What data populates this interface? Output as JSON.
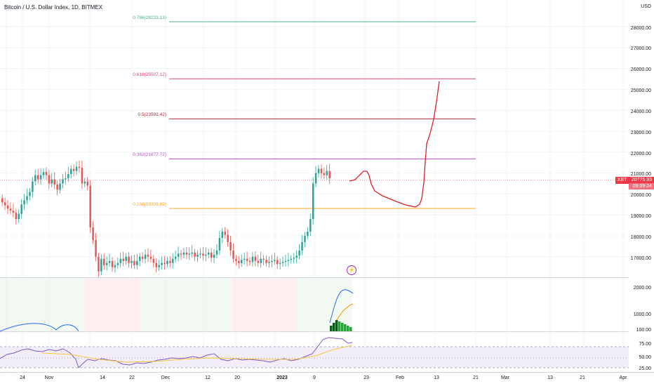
{
  "header": {
    "title": "Bitcoin / U.S. Dollar Index, 1D, BITMEX"
  },
  "price_axis": {
    "currency": "USD",
    "labels": [
      "28000.00",
      "27000.00",
      "26000.00",
      "25000.00",
      "24000.00",
      "23000.00",
      "22000.00",
      "21000.00",
      "20000.00",
      "19000.00",
      "18000.00",
      "17000.00"
    ],
    "current_price": "20775.93",
    "countdown": "09:09:24",
    "ticker_tag": "XBT"
  },
  "indicator_axes": {
    "volume_labels": [
      "2000.00",
      "1000.00",
      "100.00"
    ],
    "rsi_labels": [
      "75.00",
      "50.00",
      "25.00"
    ]
  },
  "time_axis": {
    "labels": [
      "24",
      "Nov",
      "14",
      "22",
      "Dec",
      "12",
      "20",
      "2023",
      "9",
      "23",
      "Feb",
      "13",
      "21",
      "Mar",
      "13",
      "21",
      "Apr"
    ]
  },
  "fib_levels": [
    {
      "label": "0.786(28233.13)",
      "price": 28233.13,
      "color": "#4caf8a"
    },
    {
      "label": "0.618(25507.12)",
      "price": 25507.12,
      "color": "#e0427a"
    },
    {
      "label": "0.5(23592.42)",
      "price": 23592.42,
      "color": "#a52a3c"
    },
    {
      "label": "0.382(21677.72)",
      "price": 21677.72,
      "color": "#c04ac8"
    },
    {
      "label": "0.236(19308.69)",
      "price": 19308.69,
      "color": "#f5a623"
    }
  ],
  "colors": {
    "up": "#26a69a",
    "down": "#ef5350",
    "projection": "#e0202a",
    "rsi": "#7e57c2",
    "rsi_ma": "#f5c542"
  },
  "chart_data": {
    "type": "candlestick",
    "title": "Bitcoin / U.S. Dollar Index, 1D, BITMEX",
    "ylim": [
      16300,
      29000
    ],
    "projection_path": [
      [
        20775,
        0
      ],
      [
        21200,
        3
      ],
      [
        20400,
        6
      ],
      [
        19900,
        12
      ],
      [
        19550,
        17
      ],
      [
        20300,
        20
      ],
      [
        23500,
        22
      ],
      [
        24500,
        23
      ],
      [
        25507,
        24
      ]
    ]
  }
}
